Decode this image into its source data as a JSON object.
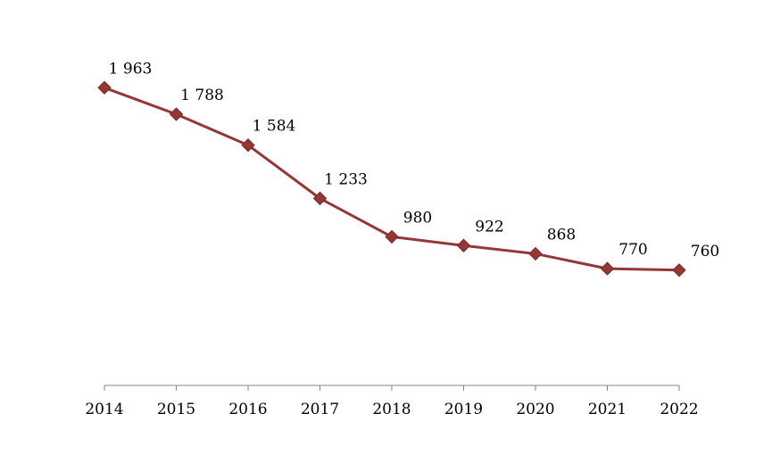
{
  "chart_data": {
    "type": "line",
    "title": "",
    "xlabel": "",
    "ylabel": "",
    "categories": [
      "2014",
      "2015",
      "2016",
      "2017",
      "2018",
      "2019",
      "2020",
      "2021",
      "2022"
    ],
    "series": [
      {
        "values": [
          1963,
          1788,
          1584,
          1233,
          980,
          922,
          868,
          770,
          760
        ],
        "labels": [
          "1 963",
          "1 788",
          "1 584",
          "1 233",
          "980",
          "922",
          "868",
          "770",
          "760"
        ],
        "color": "#953735",
        "marker": "diamond"
      }
    ],
    "ylim": [
      0,
      2000
    ],
    "grid": false,
    "legend": "none",
    "axis_color": "#868686"
  }
}
